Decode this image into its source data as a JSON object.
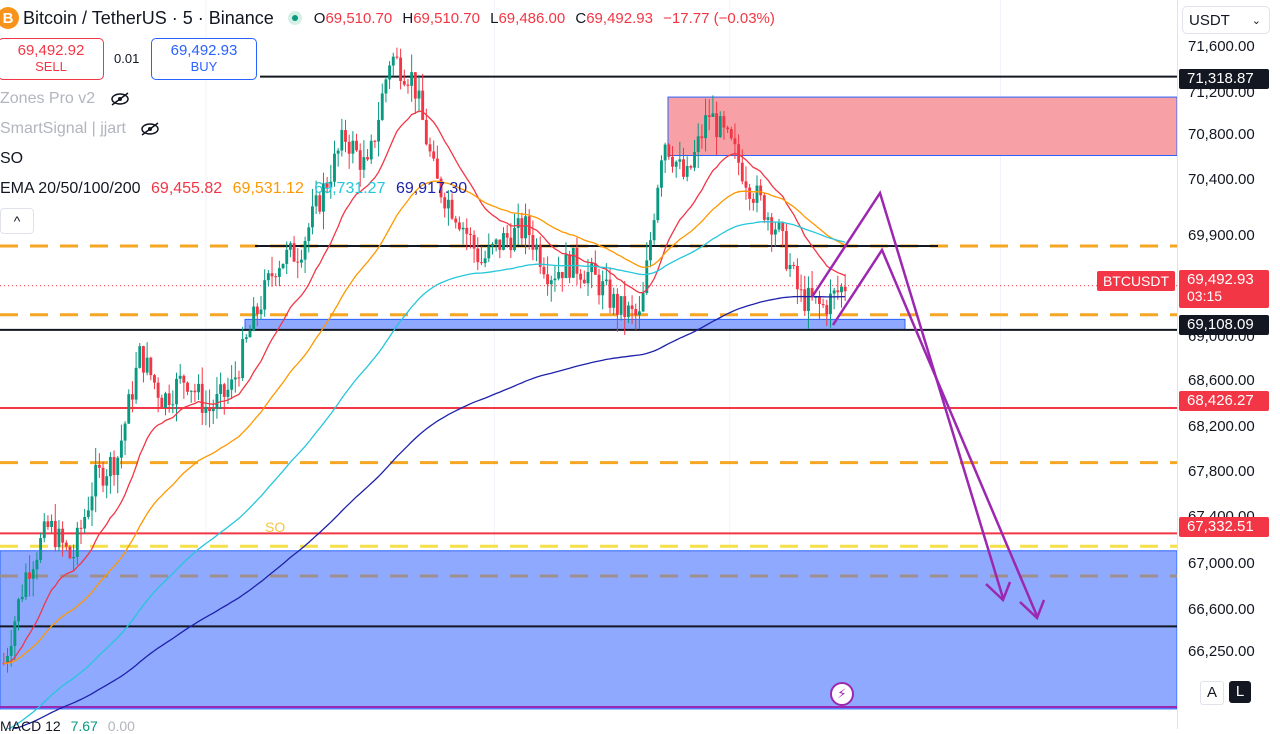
{
  "header": {
    "symbol": "Bitcoin / TetherUS · 5 · Binance",
    "coin_glyph": "B",
    "ohlc": {
      "o_label": "O",
      "o": "69,510.70",
      "h_label": "H",
      "h": "69,510.70",
      "l_label": "L",
      "l": "69,486.00",
      "c_label": "C",
      "c": "69,492.93",
      "change": "−17.77 (−0.03%)"
    }
  },
  "trade": {
    "sell_price": "69,492.92",
    "sell_label": "SELL",
    "qty": "0.01",
    "buy_price": "69,492.93",
    "buy_label": "BUY"
  },
  "indicators": {
    "zones": "Zones Pro v2",
    "smartsignal": "SmartSignal | jjart",
    "so": "SO",
    "ema_label": "EMA 20/50/100/200",
    "ema20": "69,455.82",
    "ema50": "69,531.12",
    "ema100": "69,731.27",
    "ema200": "69,917.30",
    "collapse_glyph": "^",
    "macd": "MACD 12",
    "macd_v1": "7.67",
    "macd_v2": "0.00"
  },
  "price_scale": {
    "currency": "USDT",
    "ticks": [
      "71,600.00",
      "71,200.00",
      "70,800.00",
      "70,400.00",
      "69,900.00",
      "69,000.00",
      "68,600.00",
      "68,200.00",
      "67,800.00",
      "67,400.00",
      "67,000.00",
      "66,600.00",
      "66,250.00"
    ],
    "tag_71318": "71,318.87",
    "tag_69108": "69,108.09",
    "tag_68426": "68,426.27",
    "tag_67332": "67,332.51",
    "symbol_tag": "BTCUSDT",
    "last_price": "69,492.93",
    "countdown": "03:15"
  },
  "chart_labels": {
    "so_marker": "SO"
  },
  "controls": {
    "auto": "A",
    "log": "L"
  },
  "colors": {
    "up": "#089981",
    "down": "#f23645",
    "ema20": "#f23645",
    "ema50": "#ff9800",
    "ema100": "#26c6da",
    "ema200": "#1e22aa",
    "dashed_orange": "#f5a623",
    "supply_zone": "#f7a1a6",
    "demand_zone": "#8fa9ff",
    "arrow": "#9c27b0"
  },
  "chart_data": {
    "type": "candlestick",
    "ylim": [
      66000,
      71900
    ],
    "levels": {
      "black_lines": [
        71318.87,
        69840,
        69108.09,
        66520
      ],
      "red_lines": [
        68426.27,
        67332.51
      ],
      "orange_dashed": [
        69840,
        69240,
        67950
      ],
      "yellow_dashed": [
        67220
      ],
      "gray_dashed": [
        66960
      ]
    },
    "zones": {
      "supply": [
        70630,
        71140
      ],
      "demand_top": [
        69110,
        69200
      ],
      "demand_big": [
        65800,
        67180
      ]
    },
    "path": [
      [
        0,
        66200
      ],
      [
        0.02,
        67000
      ],
      [
        0.04,
        67400
      ],
      [
        0.06,
        67100
      ],
      [
        0.08,
        67800
      ],
      [
        0.1,
        68000
      ],
      [
        0.12,
        68900
      ],
      [
        0.14,
        68500
      ],
      [
        0.16,
        68700
      ],
      [
        0.18,
        68400
      ],
      [
        0.2,
        68600
      ],
      [
        0.22,
        69200
      ],
      [
        0.24,
        69700
      ],
      [
        0.26,
        69800
      ],
      [
        0.28,
        70300
      ],
      [
        0.3,
        70800
      ],
      [
        0.32,
        70500
      ],
      [
        0.34,
        71500
      ],
      [
        0.36,
        71300
      ],
      [
        0.38,
        70400
      ],
      [
        0.4,
        70100
      ],
      [
        0.42,
        69700
      ],
      [
        0.44,
        69900
      ],
      [
        0.46,
        70000
      ],
      [
        0.48,
        69600
      ],
      [
        0.5,
        69700
      ],
      [
        0.52,
        69550
      ],
      [
        0.54,
        69300
      ],
      [
        0.56,
        69200
      ],
      [
        0.58,
        70800
      ],
      [
        0.6,
        70400
      ],
      [
        0.62,
        71000
      ],
      [
        0.64,
        70700
      ],
      [
        0.66,
        70300
      ],
      [
        0.68,
        70000
      ],
      [
        0.7,
        69400
      ],
      [
        0.72,
        69300
      ],
      [
        0.74,
        69500
      ]
    ]
  }
}
